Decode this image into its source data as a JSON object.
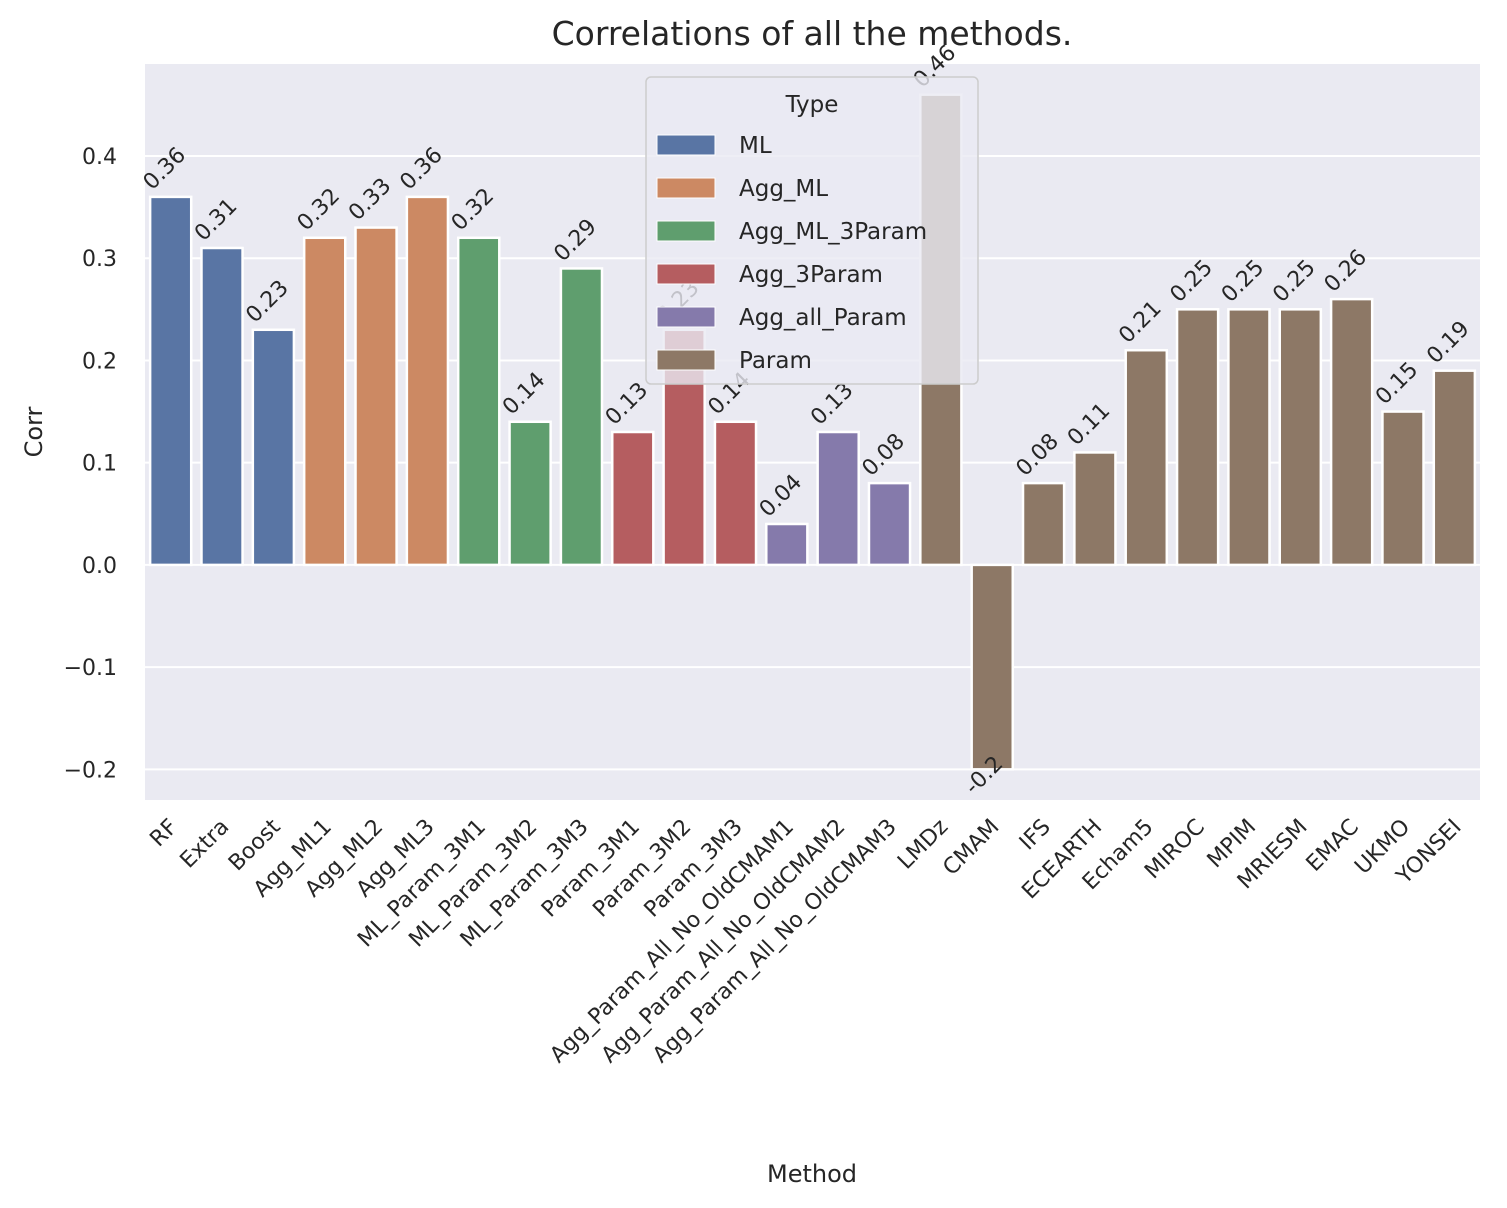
{
  "chart_data": {
    "type": "bar",
    "title": "Correlations of all the methods.",
    "xlabel": "Method",
    "ylabel": "Corr",
    "ylim": [
      -0.23,
      0.49
    ],
    "yticks": [
      -0.2,
      -0.1,
      0.0,
      0.1,
      0.2,
      0.3,
      0.4
    ],
    "ytick_labels": [
      "−0.2",
      "−0.1",
      "0.0",
      "0.1",
      "0.2",
      "0.3",
      "0.4"
    ],
    "grid": true,
    "legend_placement": "top-center",
    "legend_title": "Type",
    "legend": [
      {
        "name": "ML",
        "color": "#5975a4"
      },
      {
        "name": "Agg_ML",
        "color": "#cc8963"
      },
      {
        "name": "Agg_ML_3Param",
        "color": "#5f9e6e"
      },
      {
        "name": "Agg_3Param",
        "color": "#b55d60"
      },
      {
        "name": "Agg_all_Param",
        "color": "#857aab"
      },
      {
        "name": "Param",
        "color": "#8d7866"
      }
    ],
    "categories": [
      "RF",
      "Extra",
      "Boost",
      "Agg_ML1",
      "Agg_ML2",
      "Agg_ML3",
      "ML_Param_3M1",
      "ML_Param_3M2",
      "ML_Param_3M3",
      "Param_3M1",
      "Param_3M2",
      "Param_3M3",
      "Agg_Param_All_No_OldCMAM1",
      "Agg_Param_All_No_OldCMAM2",
      "Agg_Param_All_No_OldCMAM3",
      "LMDz",
      "CMAM",
      "IFS",
      "ECEARTH",
      "Echam5",
      "MIROC",
      "MPIM",
      "MRIESM",
      "EMAC",
      "UKMO",
      "YONSEI"
    ],
    "values": [
      0.36,
      0.31,
      0.23,
      0.32,
      0.33,
      0.36,
      0.32,
      0.14,
      0.29,
      0.13,
      0.23,
      0.14,
      0.04,
      0.13,
      0.08,
      0.46,
      -0.2,
      0.08,
      0.11,
      0.21,
      0.25,
      0.25,
      0.25,
      0.26,
      0.15,
      0.19
    ],
    "data_labels": [
      "0.36",
      "0.31",
      "0.23",
      "0.32",
      "0.33",
      "0.36",
      "0.32",
      "0.14",
      "0.29",
      "0.13",
      "0.23",
      "0.14",
      "0.04",
      "0.13",
      "0.08",
      "0.46",
      "-0.2",
      "0.08",
      "0.11",
      "0.21",
      "0.25",
      "0.25",
      "0.25",
      "0.26",
      "0.15",
      "0.19"
    ],
    "types": [
      "ML",
      "ML",
      "ML",
      "Agg_ML",
      "Agg_ML",
      "Agg_ML",
      "Agg_ML_3Param",
      "Agg_ML_3Param",
      "Agg_ML_3Param",
      "Agg_3Param",
      "Agg_3Param",
      "Agg_3Param",
      "Agg_all_Param",
      "Agg_all_Param",
      "Agg_all_Param",
      "Param",
      "Param",
      "Param",
      "Param",
      "Param",
      "Param",
      "Param",
      "Param",
      "Param",
      "Param",
      "Param"
    ],
    "background_color": "#eaeaf2",
    "grid_color": "#ffffff"
  }
}
